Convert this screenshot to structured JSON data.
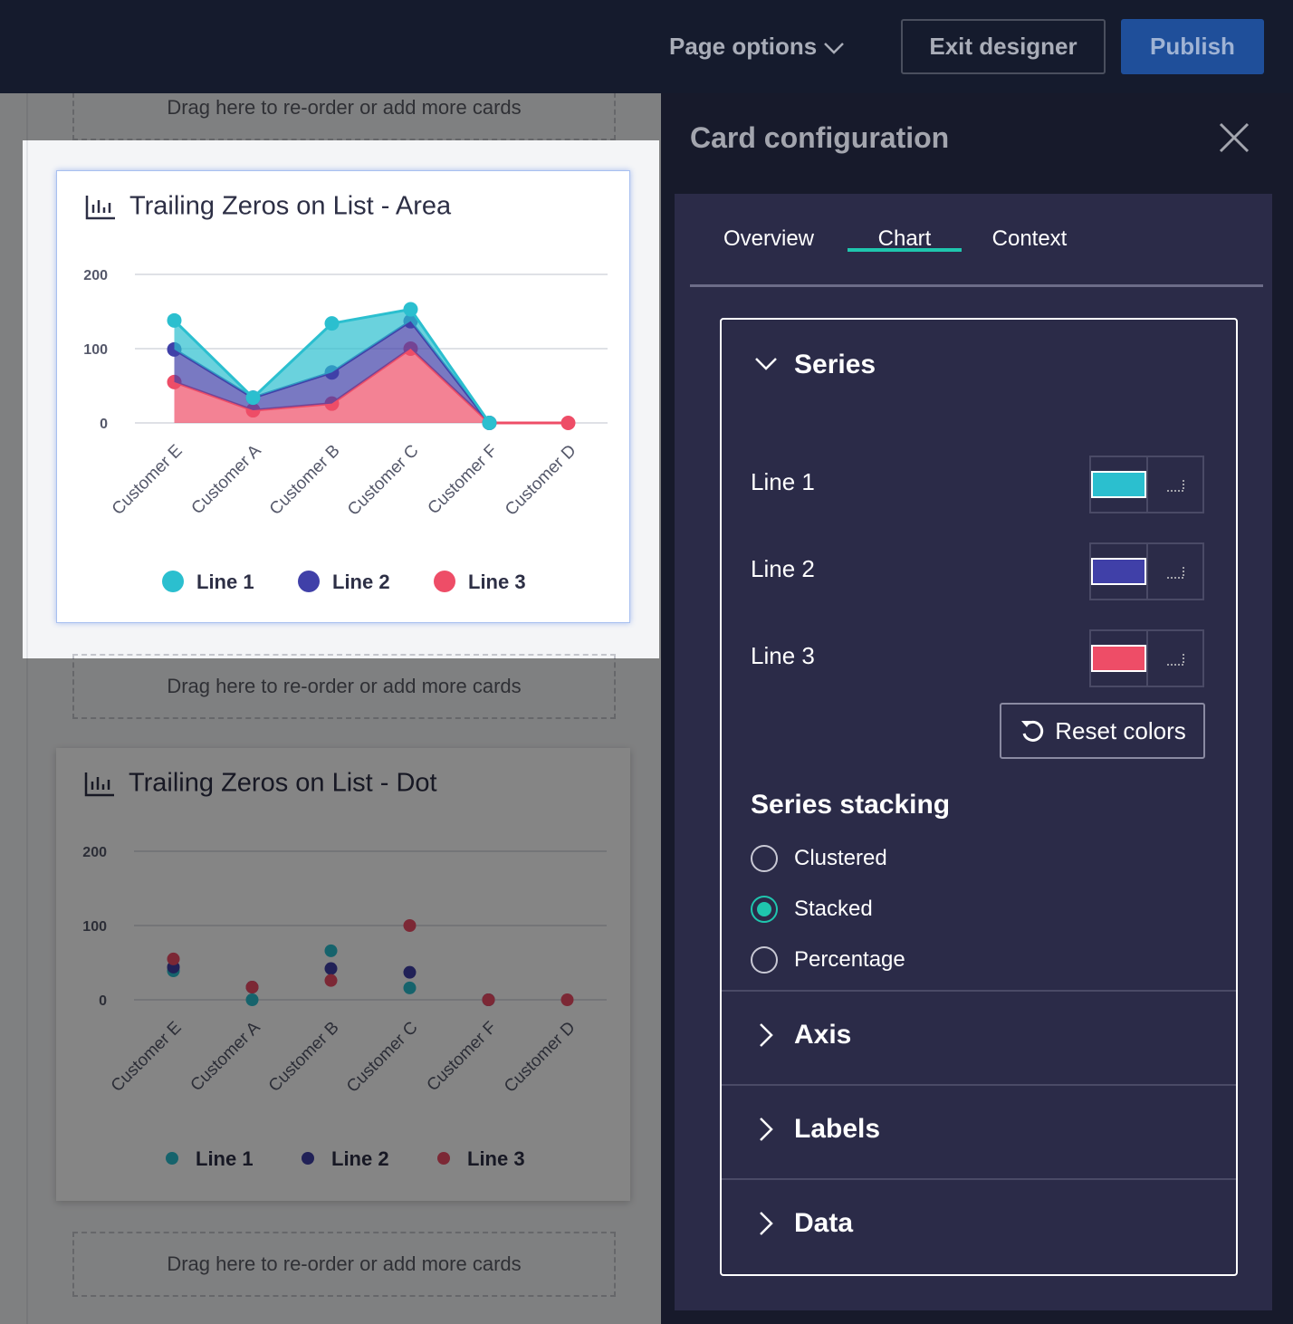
{
  "top_bar": {
    "page_options": "Page options",
    "exit": "Exit designer",
    "publish": "Publish"
  },
  "drop_zones": [
    "Drag here to re-order or add more cards",
    "Drag here to re-order or add more cards",
    "Drag here to re-order or add more cards"
  ],
  "chart_data": [
    {
      "type": "area",
      "title": "Trailing Zeros on List - Area",
      "categories": [
        "Customer E",
        "Customer A",
        "Customer B",
        "Customer C",
        "Customer F",
        "Customer D"
      ],
      "series": [
        {
          "name": "Line 1",
          "color": "#2bbfcf",
          "values": [
            39,
            0,
            66,
            16,
            0,
            null
          ]
        },
        {
          "name": "Line 2",
          "color": "#4040a8",
          "values": [
            44,
            17,
            42,
            37,
            0,
            null
          ]
        },
        {
          "name": "Line 3",
          "color": "#ee4d67",
          "values": [
            55,
            17,
            26,
            100,
            0,
            0
          ]
        }
      ],
      "ylim": [
        0,
        200
      ],
      "yticks": [
        0,
        100,
        200
      ],
      "grid": true,
      "stacked": true,
      "legend": "bottom"
    },
    {
      "type": "dot",
      "title": "Trailing Zeros on List - Dot",
      "categories": [
        "Customer E",
        "Customer A",
        "Customer B",
        "Customer C",
        "Customer F",
        "Customer D"
      ],
      "series": [
        {
          "name": "Line 1",
          "color": "#2bbfcf",
          "values": [
            39,
            0,
            66,
            16,
            0,
            null
          ]
        },
        {
          "name": "Line 2",
          "color": "#4040a8",
          "values": [
            44,
            17,
            42,
            37,
            0,
            null
          ]
        },
        {
          "name": "Line 3",
          "color": "#ee4d67",
          "values": [
            55,
            17,
            26,
            100,
            0,
            0
          ]
        }
      ],
      "ylim": [
        0,
        200
      ],
      "yticks": [
        0,
        100,
        200
      ],
      "grid": true,
      "stacked": false,
      "legend": "bottom"
    }
  ],
  "panel": {
    "title": "Card configuration",
    "tabs": [
      "Overview",
      "Chart",
      "Context"
    ],
    "active_tab": 1,
    "series_section": "Series",
    "series": [
      {
        "name": "Line 1",
        "color": "#2bbfcf"
      },
      {
        "name": "Line 2",
        "color": "#4040a8"
      },
      {
        "name": "Line 3",
        "color": "#ee4d67"
      }
    ],
    "reset": "Reset colors",
    "stacking": {
      "title": "Series stacking",
      "options": [
        "Clustered",
        "Stacked",
        "Percentage"
      ],
      "selected": 1
    },
    "sections": [
      "Axis",
      "Labels",
      "Data"
    ]
  }
}
